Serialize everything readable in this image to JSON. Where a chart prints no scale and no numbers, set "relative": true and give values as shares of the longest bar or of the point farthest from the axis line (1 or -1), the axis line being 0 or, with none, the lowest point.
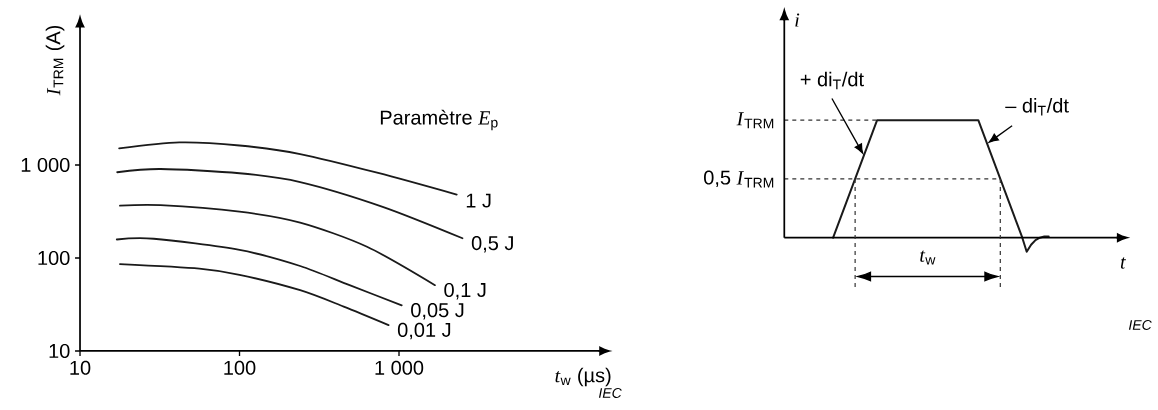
{
  "chart_data": [
    {
      "type": "line",
      "xlabel": "*t*$_{w}$ (µs)",
      "ylabel": "*I*$_{TRM}$ (A)",
      "log": "xy",
      "xlim": [
        10,
        18000
      ],
      "ylim": [
        10,
        30000
      ],
      "xticks": [
        10,
        100,
        {
          "value": 1000,
          "label": "1 000"
        }
      ],
      "yticks": [
        10,
        100,
        {
          "value": 1000,
          "label": "1 000"
        }
      ],
      "marker": "none",
      "legend_title": "Paramètre *E*$_{p}$",
      "annotations": [
        "IEC"
      ],
      "series": [
        {
          "name": "1 J",
          "color": "#1a1a1a",
          "x": [
            17.6,
            42,
            100,
            240,
            740,
            2300
          ],
          "values": [
            1510,
            1750,
            1620,
            1310,
            820,
            480
          ]
        },
        {
          "name": "0,5 J",
          "color": "#1a1a1a",
          "x": [
            17.1,
            32,
            100,
            240,
            790,
            2500
          ],
          "values": [
            835,
            905,
            815,
            655,
            355,
            163
          ]
        },
        {
          "name": "0,1 J",
          "color": "#1a1a1a",
          "x": [
            17.8,
            32,
            100,
            240,
            630,
            1680
          ],
          "values": [
            365,
            370,
            315,
            240,
            132,
            51
          ]
        },
        {
          "name": "0,05 J",
          "color": "#1a1a1a",
          "x": [
            17,
            29,
            100,
            240,
            490,
            1040
          ],
          "values": [
            158,
            161,
            122,
            82,
            51,
            31
          ]
        },
        {
          "name": "0,01 J",
          "color": "#1a1a1a",
          "x": [
            17.8,
            56,
            100,
            240,
            450,
            860
          ],
          "values": [
            86,
            77,
            66,
            45,
            30,
            19
          ]
        }
      ]
    },
    {
      "type": "line",
      "relative": true,
      "xlabel": "*t*",
      "ylabel": "*i*",
      "marker": "none",
      "color": "#1a1a1a",
      "categories": [
        null,
        null,
        null,
        null,
        null,
        null,
        null,
        null,
        null,
        null,
        null,
        null,
        null,
        null,
        null,
        null,
        null,
        null,
        null,
        null,
        null,
        null,
        null,
        null,
        null,
        null,
        null,
        null,
        null,
        null,
        null,
        null,
        null,
        null,
        null,
        null,
        null,
        null,
        null,
        null,
        null,
        null,
        null,
        null,
        null,
        null,
        null,
        null,
        null,
        null
      ],
      "values": [
        0,
        0.1,
        0.2,
        0.3,
        0.4,
        0.5,
        0.6,
        0.7,
        0.8,
        0.9,
        1,
        1,
        1,
        1,
        1,
        1,
        1,
        1,
        1,
        1,
        1,
        1,
        1,
        1,
        1,
        1,
        1,
        1,
        1,
        1,
        1,
        1,
        1,
        1,
        0.9,
        0.8,
        0.7,
        0.6,
        0.5,
        0.4,
        0.3,
        0.2,
        0.1,
        0,
        -0.12,
        -0.06,
        -0.02,
        0,
        0.01,
        0.01
      ],
      "ref_lines": [
        {
          "axis": "y",
          "value": 1,
          "label": "*I*$_{TRM}$",
          "line_style": "dashed",
          "color": "#333333"
        },
        {
          "axis": "y",
          "value": 0.5,
          "label": "0,5 *I*$_{TRM}$",
          "line_style": "dashed",
          "color": "#333333"
        }
      ],
      "annotations": [
        "+ di$_{T}$/dt",
        "– di$_{T}$/dt",
        "*t*$_{w}$",
        "IEC"
      ]
    }
  ]
}
